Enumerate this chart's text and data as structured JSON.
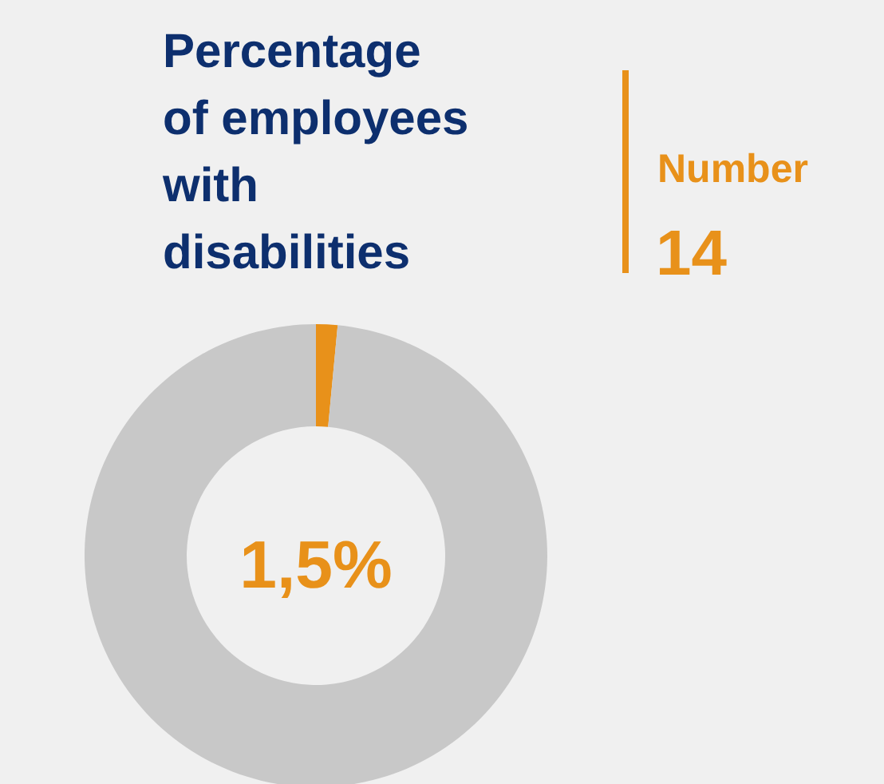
{
  "chart_data": {
    "type": "donut",
    "title": "Percentage of employees with disabilities",
    "categories": [
      null,
      null
    ],
    "values": [
      1.5,
      98.5
    ],
    "colors": [
      "#e8911a",
      "#c8c8c8"
    ],
    "annotations": [
      "Number",
      "14",
      "1,5%"
    ]
  }
}
